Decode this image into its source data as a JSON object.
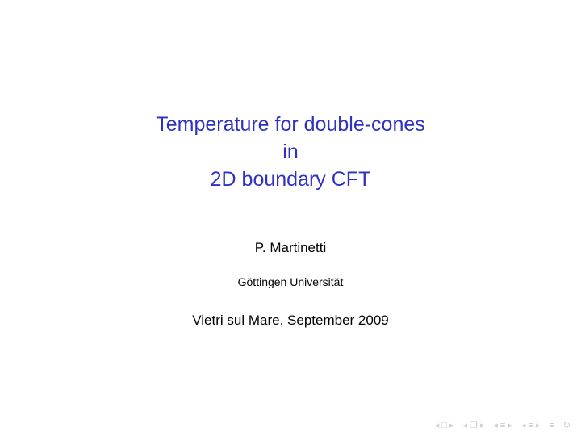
{
  "title": {
    "line1": "Temperature for double-cones",
    "line2": "in",
    "line3": "2D boundary CFT",
    "color": "#2e32be",
    "fontsize": 25
  },
  "author": {
    "text": "P. Martinetti",
    "fontsize": 17,
    "color": "#000000"
  },
  "affiliation": {
    "text": "Göttingen Universität",
    "fontsize": 14,
    "color": "#000000"
  },
  "venue": {
    "text": "Vietri sul Mare, September 2009",
    "fontsize": 17,
    "color": "#000000"
  },
  "nav": {
    "first_l": "◂",
    "first_sym": "□",
    "first_r": "▸",
    "frame_l": "◂",
    "frame_sym": "❐",
    "frame_r": "▸",
    "sub_l": "◂",
    "sub_sym": "≡",
    "sub_r": "▸",
    "sec_l": "◂",
    "sec_sym": "≡",
    "sec_r": "▸",
    "back": "≡",
    "undo": "↻",
    "color": "#cbcbcb"
  },
  "background_color": "#ffffff"
}
